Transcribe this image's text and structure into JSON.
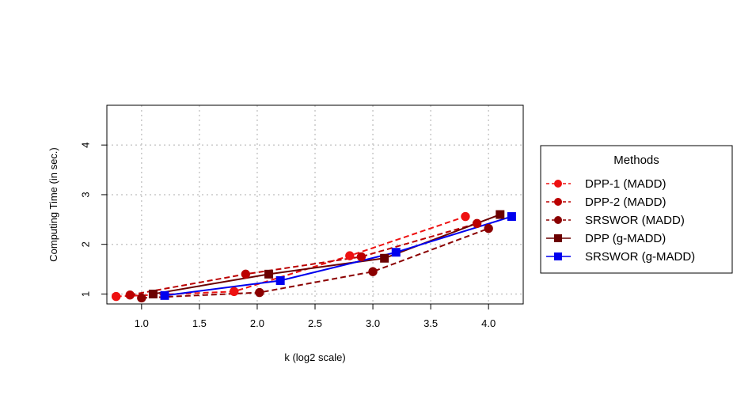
{
  "chart_data": {
    "type": "line",
    "xlabel": "k (log2 scale)",
    "ylabel": "Computing Time (in sec.)",
    "xlim": [
      0.7,
      4.3
    ],
    "ylim": [
      0.8,
      4.8
    ],
    "x_ticks": [
      "1.0",
      "1.5",
      "2.0",
      "2.5",
      "3.0",
      "3.5",
      "4.0"
    ],
    "y_ticks": [
      "1",
      "2",
      "3",
      "4"
    ],
    "grid": true,
    "legend": {
      "title": "Methods",
      "position": "right"
    },
    "series": [
      {
        "name": "DPP-1 (MADD)",
        "color": "#ee1111",
        "line_style": "dashed",
        "marker": "circle",
        "x": [
          0.78,
          1.8,
          2.8,
          3.8
        ],
        "y": [
          0.95,
          1.05,
          1.77,
          2.56
        ]
      },
      {
        "name": "DPP-2 (MADD)",
        "color": "#bb0000",
        "line_style": "dashed",
        "marker": "circle",
        "x": [
          0.9,
          1.9,
          2.9,
          3.9
        ],
        "y": [
          0.98,
          1.4,
          1.75,
          2.42
        ]
      },
      {
        "name": "SRSWOR (MADD)",
        "color": "#8b0000",
        "line_style": "dashed",
        "marker": "circle",
        "x": [
          1.0,
          2.02,
          3.0,
          4.0
        ],
        "y": [
          0.92,
          1.03,
          1.45,
          2.32
        ]
      },
      {
        "name": "DPP (g-MADD)",
        "color": "#6b0000",
        "line_style": "solid",
        "marker": "square",
        "x": [
          1.1,
          2.1,
          3.1,
          4.1
        ],
        "y": [
          1.0,
          1.4,
          1.72,
          2.6
        ]
      },
      {
        "name": "SRSWOR (g-MADD)",
        "color": "#0000ee",
        "line_style": "solid",
        "marker": "square",
        "x": [
          1.2,
          2.2,
          3.2,
          4.2
        ],
        "y": [
          0.97,
          1.27,
          1.84,
          2.56
        ]
      }
    ]
  }
}
